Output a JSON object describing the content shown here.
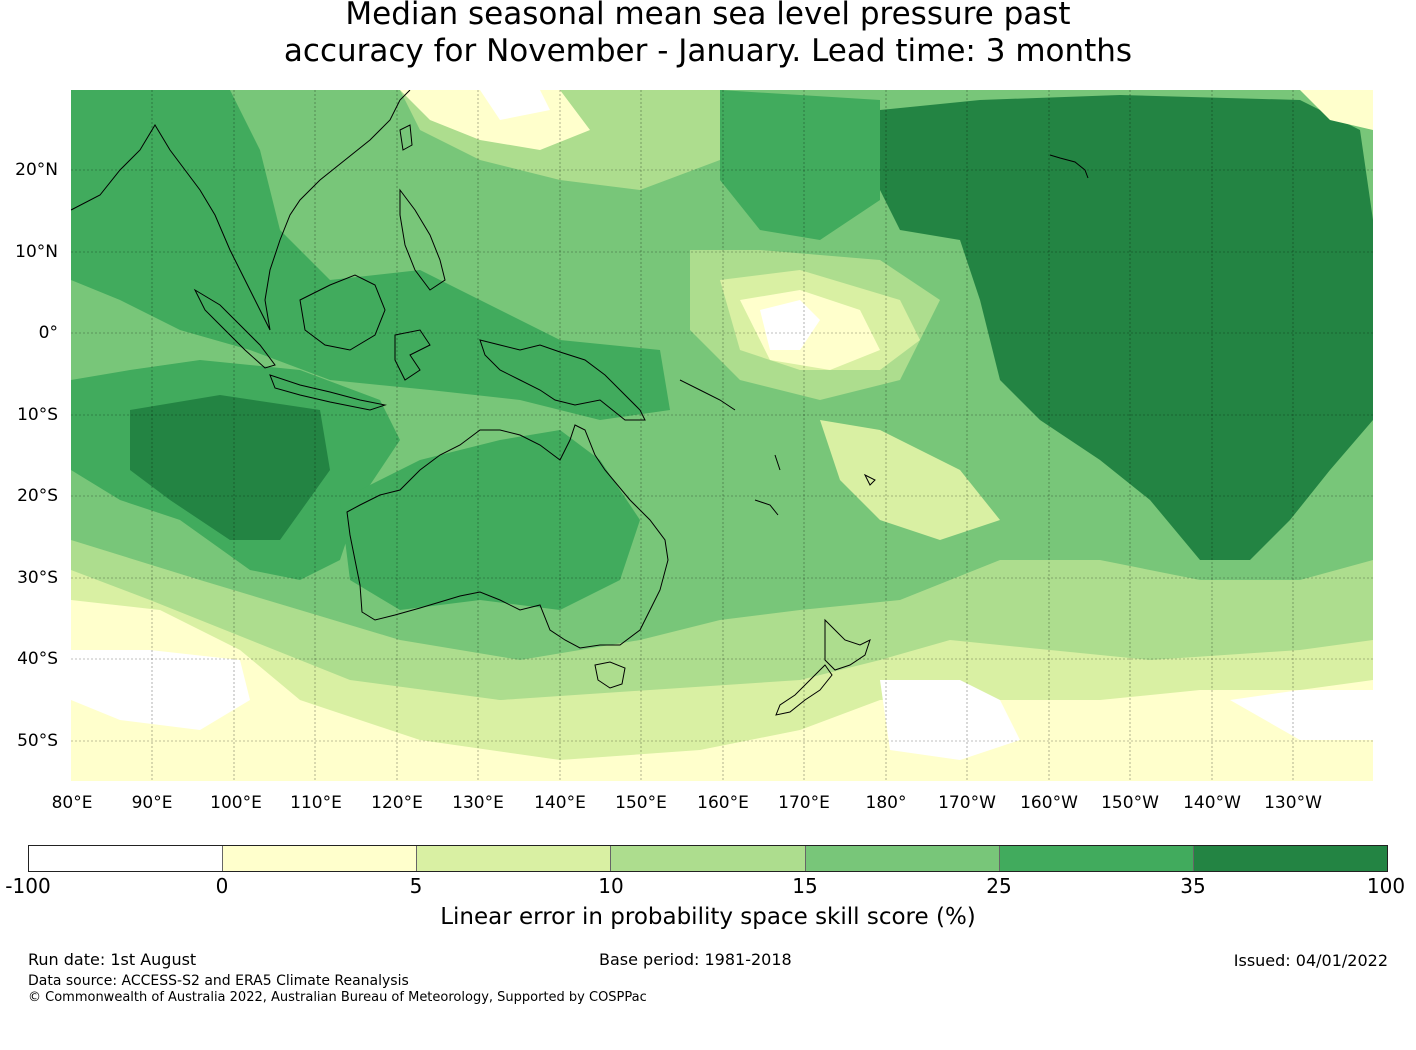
{
  "title": {
    "line1": "Median seasonal mean sea level pressure past",
    "line2": "accuracy for November - January. Lead time: 3 months"
  },
  "map": {
    "lat_labels": [
      "20°N",
      "10°N",
      "0°",
      "10°S",
      "20°S",
      "30°S",
      "40°S",
      "50°S"
    ],
    "lon_labels": [
      "80°E",
      "90°E",
      "100°E",
      "110°E",
      "120°E",
      "130°E",
      "140°E",
      "150°E",
      "160°E",
      "170°E",
      "180°",
      "170°W",
      "160°W",
      "150°W",
      "140°W",
      "130°W"
    ]
  },
  "colorbar": {
    "colors": [
      "#ffffff",
      "#ffffcc",
      "#d9f0a3",
      "#addd8e",
      "#78c679",
      "#41ab5d",
      "#238443"
    ],
    "ticks": [
      "-100",
      "0",
      "5",
      "10",
      "15",
      "25",
      "35",
      "100"
    ],
    "label": "Linear error in probability space skill score (%)"
  },
  "footer": {
    "run_date": "Run date: 1st August",
    "base_period": "Base period: 1981-2018",
    "issued": "Issued: 04/01/2022",
    "data_source": "Data source: ACCESS-S2 and ERA5 Climate Reanalysis",
    "copyright": "© Commonwealth of Australia 2022, Australian Bureau of Meteorology, Supported by COSPPac"
  }
}
